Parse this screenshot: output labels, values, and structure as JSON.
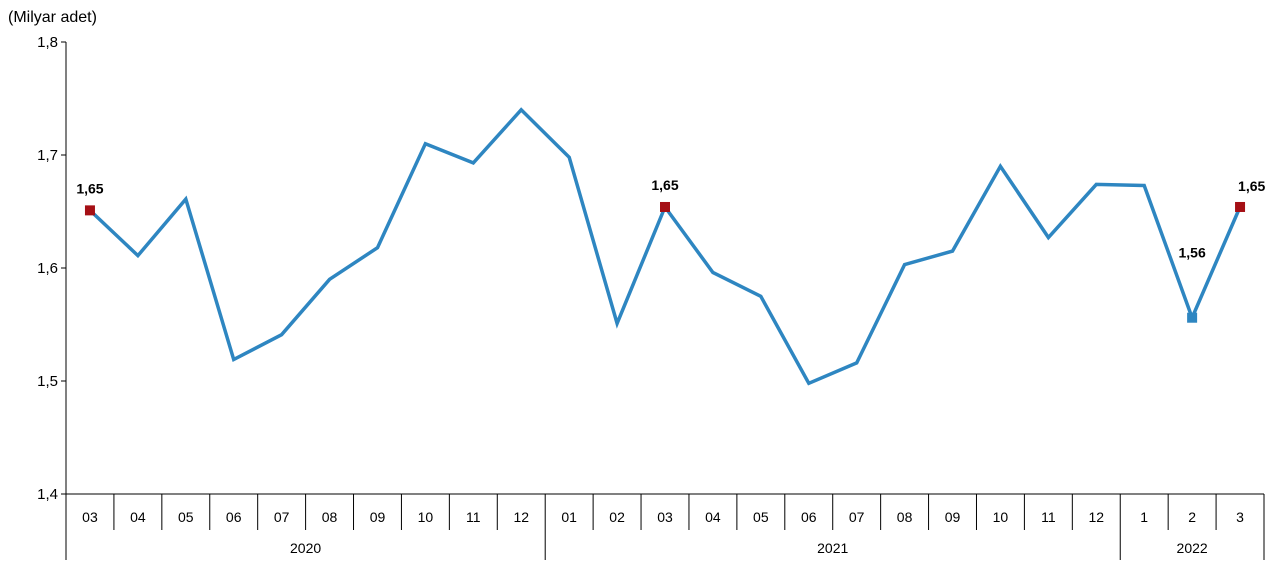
{
  "chart_data": {
    "type": "line",
    "unit_label": "(Milyar adet)",
    "ylim": [
      1.4,
      1.8
    ],
    "yticks": [
      "1,4",
      "1,5",
      "1,6",
      "1,7",
      "1,8"
    ],
    "categories": [
      "03",
      "04",
      "05",
      "06",
      "07",
      "08",
      "09",
      "10",
      "11",
      "12",
      "01",
      "02",
      "03",
      "04",
      "05",
      "06",
      "07",
      "08",
      "09",
      "10",
      "11",
      "12",
      "1",
      "2",
      "3"
    ],
    "groups": [
      {
        "label": "2020",
        "count": 10
      },
      {
        "label": "2021",
        "count": 12
      },
      {
        "label": "2022",
        "count": 3
      }
    ],
    "series": [
      {
        "values": [
          1.651,
          1.611,
          1.661,
          1.519,
          1.541,
          1.59,
          1.618,
          1.71,
          1.693,
          1.74,
          1.698,
          1.551,
          1.654,
          1.596,
          1.575,
          1.498,
          1.516,
          1.603,
          1.615,
          1.69,
          1.627,
          1.674,
          1.673,
          1.556,
          1.654
        ],
        "color": "#2E86C1"
      }
    ],
    "annotations": [
      {
        "index": 0,
        "label": "1,65",
        "marker_color": "#A50F15"
      },
      {
        "index": 12,
        "label": "1,65",
        "marker_color": "#A50F15"
      },
      {
        "index": 23,
        "label": "1,56",
        "marker_color": "#2E86C1"
      },
      {
        "index": 24,
        "label": "1,65",
        "marker_color": "#A50F15"
      }
    ],
    "grid": false,
    "legend": "none"
  }
}
